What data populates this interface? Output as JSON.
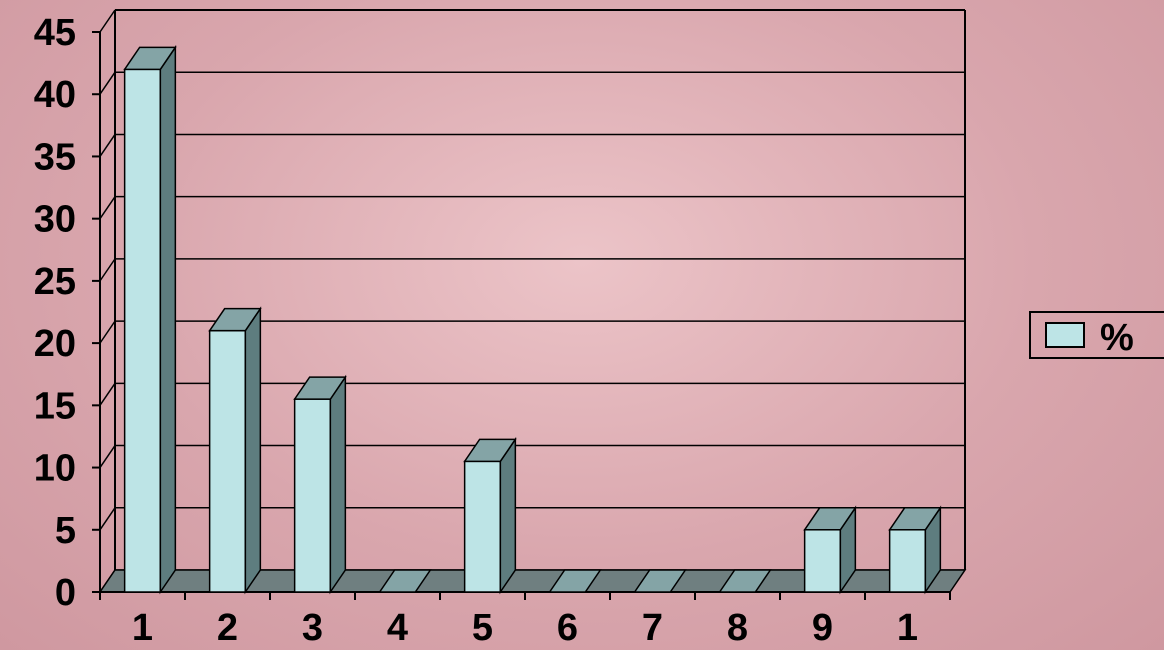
{
  "chart_data": {
    "type": "bar",
    "style": "3d-column",
    "categories": [
      "1",
      "2",
      "3",
      "4",
      "5",
      "6",
      "7",
      "8",
      "9",
      "1"
    ],
    "series": [
      {
        "name": "%",
        "values": [
          42,
          21,
          15.5,
          0,
          10.5,
          0,
          0,
          0,
          5,
          5
        ]
      }
    ],
    "ylim": [
      0,
      45
    ],
    "yticks": [
      "0",
      "5",
      "10",
      "15",
      "20",
      "25",
      "30",
      "35",
      "40",
      "45"
    ],
    "grid": true,
    "legend": "right",
    "colors": {
      "bar_front": "#bde4e6",
      "bar_top": "#84a4a6",
      "bar_side": "#5e7d7f",
      "floor": "#6f7f80",
      "gridline": "#000000"
    }
  }
}
